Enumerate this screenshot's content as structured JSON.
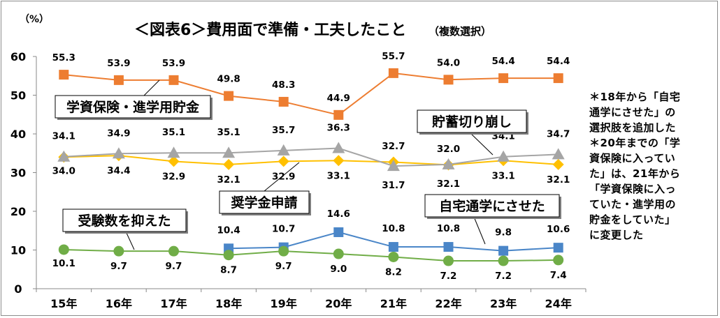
{
  "chart_data": {
    "type": "line",
    "title": "＜図表6＞費用面で準備・工夫したこと",
    "subtitle": "（複数選択）",
    "y_unit_label": "（%）",
    "categories": [
      "15年",
      "16年",
      "17年",
      "18年",
      "19年",
      "20年",
      "21年",
      "22年",
      "23年",
      "24年"
    ],
    "ylim": [
      0,
      60
    ],
    "yticks": [
      0,
      10,
      20,
      30,
      40,
      50,
      60
    ],
    "grid": false,
    "series": [
      {
        "name": "学資保険・進学用貯金",
        "color": "#ED7D31",
        "marker": "square",
        "values": [
          55.3,
          53.9,
          53.9,
          49.8,
          48.3,
          44.9,
          55.7,
          54.0,
          54.4,
          54.4
        ]
      },
      {
        "name": "奨学金申請",
        "color": "#FFC000",
        "marker": "diamond",
        "values": [
          34.0,
          34.4,
          32.9,
          32.1,
          32.9,
          33.1,
          32.7,
          32.0,
          33.1,
          32.1
        ]
      },
      {
        "name": "貯蓄切り崩し",
        "color": "#A5A5A5",
        "marker": "triangle",
        "values": [
          34.1,
          34.9,
          35.1,
          35.1,
          35.7,
          36.3,
          31.7,
          32.1,
          34.1,
          34.7
        ]
      },
      {
        "name": "自宅通学にさせた",
        "color": "#4A86C8",
        "marker": "square",
        "values": [
          null,
          null,
          null,
          10.4,
          10.7,
          14.6,
          10.8,
          10.8,
          9.8,
          10.6
        ]
      },
      {
        "name": "受験数を抑えた",
        "color": "#70AD47",
        "marker": "circle",
        "values": [
          10.1,
          9.7,
          9.7,
          8.7,
          9.7,
          9.0,
          8.2,
          7.2,
          7.2,
          7.4
        ]
      }
    ]
  },
  "note_lines": [
    "＊18年から「自宅",
    "通学にさせた」の",
    "選択肢を追加した",
    "＊20年までの「学",
    "資保険に入ってい",
    "た」は、21年から",
    "「学資保険に入っ",
    "ていた・進学用の",
    "貯金をしていた」",
    "に変更した"
  ]
}
